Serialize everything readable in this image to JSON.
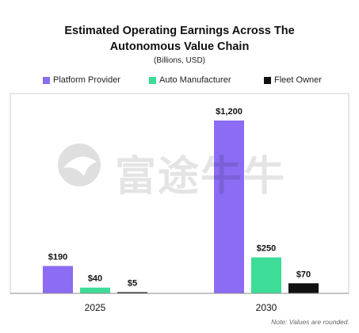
{
  "chart_data": {
    "type": "bar",
    "title_line1": "Estimated Operating Earnings Across The",
    "title_line2": "Autonomous Value Chain",
    "subtitle": "(Billions, USD)",
    "categories": [
      "2025",
      "2030"
    ],
    "series": [
      {
        "name": "Platform Provider",
        "color": "#8b6cf2",
        "values": [
          190,
          1200
        ],
        "labels": [
          "$190",
          "$1,200"
        ]
      },
      {
        "name": "Auto Manufacturer",
        "color": "#3ddc97",
        "values": [
          40,
          250
        ],
        "labels": [
          "$40",
          "$250"
        ]
      },
      {
        "name": "Fleet Owner",
        "color": "#111111",
        "values": [
          5,
          70
        ],
        "labels": [
          "$5",
          "$70"
        ]
      }
    ],
    "ylim": [
      0,
      1200
    ],
    "grid": false,
    "legend_position": "top"
  },
  "note": "Note: Values are rounded.",
  "watermark": "富途牛牛"
}
